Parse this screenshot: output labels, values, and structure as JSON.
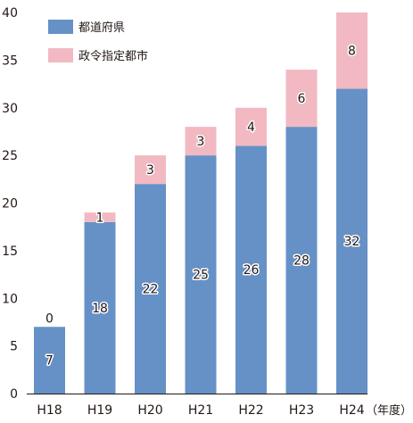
{
  "chart_data": {
    "type": "bar",
    "stacked": true,
    "categories": [
      "H18",
      "H19",
      "H20",
      "H21",
      "H22",
      "H23",
      "H24"
    ],
    "x_unit_label": "（年度）",
    "ylim": [
      0,
      40
    ],
    "yticks": [
      0,
      5,
      10,
      15,
      20,
      25,
      30,
      35,
      40
    ],
    "grid": false,
    "legend_position": "top-left",
    "series": [
      {
        "name": "都道府県",
        "color": "#6591c6",
        "values": [
          7,
          18,
          22,
          25,
          26,
          28,
          32
        ]
      },
      {
        "name": "政令指定都市",
        "color": "#f2b9c2",
        "values": [
          0,
          1,
          3,
          3,
          4,
          6,
          8
        ]
      }
    ]
  }
}
